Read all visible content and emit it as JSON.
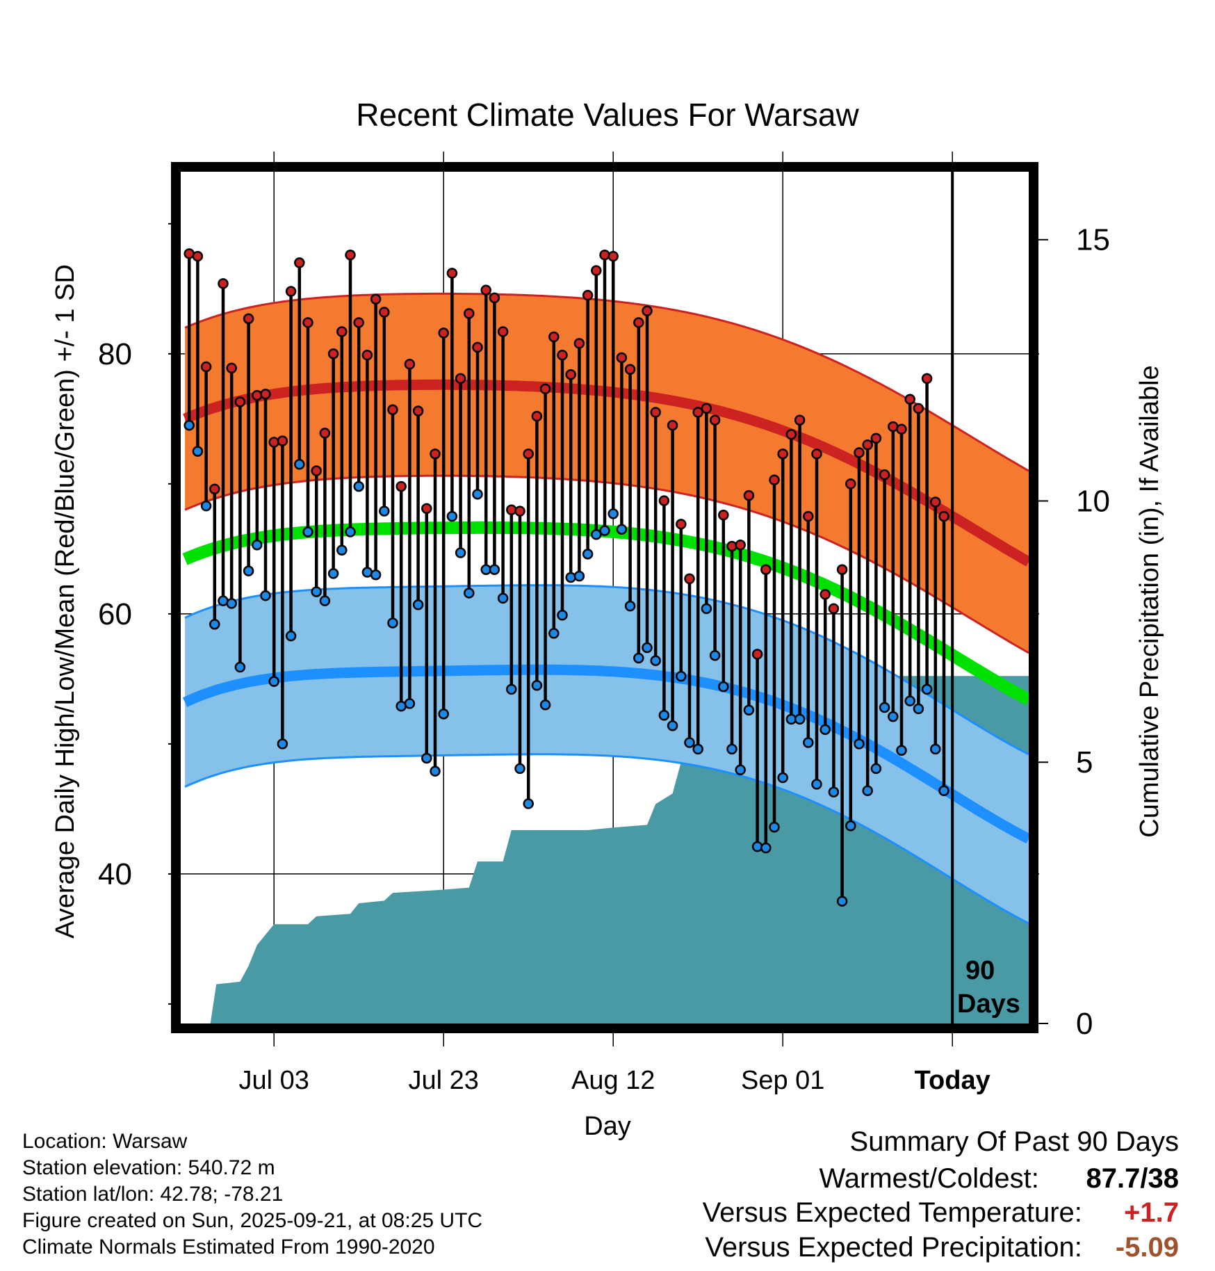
{
  "chart_data": {
    "type": "line",
    "title": "Recent Climate Values For Warsaw",
    "xlabel": "Day",
    "ylabel": "Average Daily High/Low/Mean (Red/Blue/Green) +/- 1 SD",
    "y2label": "Cumulative Precipitation (in), If Available",
    "x_range_days": [
      -91,
      9
    ],
    "ylim": [
      28.5,
      94
    ],
    "y2lim": [
      0,
      16.3
    ],
    "yticks": [
      40,
      60,
      80
    ],
    "y2ticks": [
      0,
      5,
      10,
      15
    ],
    "xticks": [
      {
        "day": -80,
        "label": "Jul 03"
      },
      {
        "day": -60,
        "label": "Jul 23"
      },
      {
        "day": -40,
        "label": "Aug 12"
      },
      {
        "day": -20,
        "label": "Sep 01"
      },
      {
        "day": 0,
        "label": "Today"
      }
    ],
    "today_marker_label": [
      "90",
      "Days"
    ],
    "normal_high": [
      75,
      77.5,
      77.5,
      76,
      71.2,
      64
    ],
    "normal_high_sd": 7,
    "normal_low": [
      53.2,
      55.5,
      55.7,
      54.8,
      50,
      42.7
    ],
    "normal_low_sd": 6.5,
    "normal_mean": [
      64.2,
      66.5,
      66.6,
      65.4,
      60.6,
      53.4
    ],
    "normal_days": [
      -90.5,
      -70,
      -50,
      -30,
      -10,
      9
    ],
    "daily_highs": [
      87.7,
      87.5,
      79,
      69.6,
      85.4,
      78.9,
      76.3,
      82.7,
      76.8,
      76.9,
      73.2,
      73.3,
      84.8,
      87,
      82.4,
      71,
      73.9,
      80,
      81.7,
      87.6,
      82.4,
      79.9,
      84.2,
      83.2,
      75.7,
      69.8,
      79.2,
      75.6,
      68.1,
      72.3,
      81.6,
      86.2,
      78.1,
      83.1,
      80.5,
      84.9,
      84.3,
      81.7,
      68,
      67.9,
      72.3,
      75.2,
      77.3,
      81.3,
      79.9,
      78.4,
      80.8,
      84.5,
      86.4,
      87.6,
      87.5,
      79.7,
      78.8,
      82.4,
      83.3,
      75.5,
      68.7,
      74.5,
      66.9,
      62.7,
      75.5,
      75.8,
      74.9,
      67.6,
      65.2,
      65.3,
      69.1,
      56.9,
      63.4,
      70.3,
      72.3,
      73.8,
      74.9,
      67.5,
      72.3,
      61.5,
      60.4,
      63.4,
      70,
      72.4,
      73,
      73.5,
      70.7,
      74.4,
      74.2,
      76.5,
      75.8,
      78.1,
      68.6,
      67.5
    ],
    "daily_lows": [
      74.5,
      72.5,
      68.3,
      59.2,
      61,
      60.8,
      55.9,
      63.3,
      65.3,
      61.4,
      54.8,
      50,
      58.3,
      71.5,
      66.3,
      61.7,
      61,
      63.1,
      64.9,
      66.3,
      69.8,
      63.2,
      63,
      67.9,
      59.3,
      52.9,
      53.1,
      60.7,
      48.9,
      47.9,
      52.3,
      67.5,
      64.7,
      61.6,
      69.2,
      63.4,
      63.4,
      61.2,
      54.2,
      48.1,
      45.4,
      54.5,
      53,
      58.5,
      59.9,
      62.8,
      62.9,
      64.6,
      66.1,
      66.4,
      67.7,
      66.5,
      60.6,
      56.6,
      57.4,
      56.4,
      52.2,
      51.4,
      55.2,
      50.1,
      49.6,
      60.4,
      56.8,
      54.4,
      49.6,
      48,
      52.6,
      42.1,
      42,
      43.6,
      47.4,
      51.9,
      51.9,
      50.1,
      46.9,
      51.1,
      46.3,
      37.9,
      43.7,
      50,
      46.4,
      48.1,
      52.8,
      52.1,
      49.5,
      53.3,
      52.7,
      54.2,
      49.6,
      46.4
    ],
    "cumulative_precip": [
      {
        "day": -91,
        "in": 0
      },
      {
        "day": -87.5,
        "in": 0
      },
      {
        "day": -86.8,
        "in": 0.75
      },
      {
        "day": -84,
        "in": 0.8
      },
      {
        "day": -83,
        "in": 1.1
      },
      {
        "day": -82,
        "in": 1.5
      },
      {
        "day": -80,
        "in": 1.9
      },
      {
        "day": -76,
        "in": 1.9
      },
      {
        "day": -75,
        "in": 2.05
      },
      {
        "day": -71,
        "in": 2.1
      },
      {
        "day": -70,
        "in": 2.3
      },
      {
        "day": -67,
        "in": 2.35
      },
      {
        "day": -66,
        "in": 2.5
      },
      {
        "day": -61,
        "in": 2.55
      },
      {
        "day": -57,
        "in": 2.6
      },
      {
        "day": -56,
        "in": 3.1
      },
      {
        "day": -53,
        "in": 3.1
      },
      {
        "day": -52,
        "in": 3.7
      },
      {
        "day": -43,
        "in": 3.7
      },
      {
        "day": -40,
        "in": 3.75
      },
      {
        "day": -36,
        "in": 3.8
      },
      {
        "day": -35,
        "in": 4.2
      },
      {
        "day": -33,
        "in": 4.4
      },
      {
        "day": -32,
        "in": 5.0
      },
      {
        "day": -28,
        "in": 5.05
      },
      {
        "day": -25,
        "in": 5.3
      },
      {
        "day": -24,
        "in": 5.75
      },
      {
        "day": -20,
        "in": 5.8
      },
      {
        "day": -19,
        "in": 6.3
      },
      {
        "day": -17,
        "in": 6.5
      },
      {
        "day": -13,
        "in": 6.65
      },
      {
        "day": 9,
        "in": 6.65
      }
    ]
  },
  "footer": {
    "location": "Location: Warsaw",
    "elevation": "Station elevation: 540.72 m",
    "latlon": "Station lat/lon: 42.78; -78.21",
    "created": "Figure created on Sun, 2025-09-21, at 08:25 UTC",
    "normals": "Climate Normals Estimated From 1990-2020"
  },
  "summary": {
    "title": "Summary Of Past 90 Days",
    "warmest_label": "Warmest/Coldest:",
    "warmest_value": "87.7/38",
    "temp_label": "Versus Expected Temperature:",
    "temp_value": "+1.7",
    "temp_color": "#cc2222",
    "precip_label": "Versus Expected Precipitation:",
    "precip_value": "-5.09",
    "precip_color": "#a0522d"
  },
  "colors": {
    "high_band": "#f47a30",
    "high_line": "#cc2222",
    "low_band": "#85c1e9",
    "low_line": "#1e8fff",
    "mean_line": "#00e000",
    "precip_fill": "#4a9aa5",
    "high_dot": "#cc2222",
    "low_dot": "#1e88e5"
  }
}
